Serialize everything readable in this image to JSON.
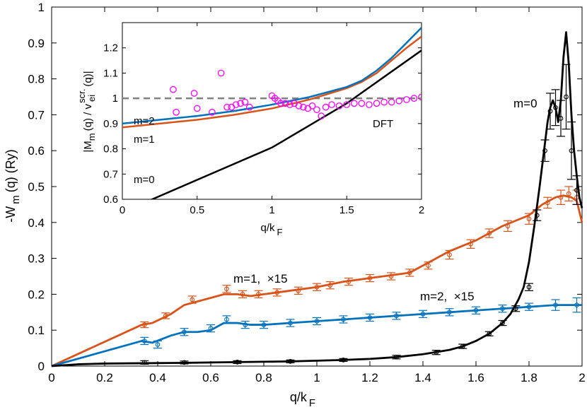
{
  "colors": {
    "m0": "#000000",
    "m1": "#d95319",
    "m2": "#0072bd",
    "dft": "#ff00ff",
    "ref": "#808080"
  },
  "chart_data": [
    {
      "type": "line",
      "title": "",
      "xlabel": {
        "main": "q/k",
        "sub": "F"
      },
      "ylabel": {
        "pre": "-W",
        "sub": "m",
        "post": "(q) (Ry)"
      },
      "xlim": [
        0,
        2
      ],
      "ylim": [
        0,
        1
      ],
      "xticks": [
        "0",
        "0.2",
        "0.4",
        "0.6",
        "0.8",
        "1",
        "1.2",
        "1.4",
        "1.6",
        "1.8",
        "2"
      ],
      "yticks": [
        "0",
        "0.1",
        "0.2",
        "0.3",
        "0.4",
        "0.5",
        "0.6",
        "0.7",
        "0.8",
        "0.9",
        "1"
      ],
      "annotations": {
        "m0": "m=0",
        "m1": "m=1,  ×15",
        "m2": "m=2,  ×15"
      },
      "series": [
        {
          "name": "m=0",
          "line": {
            "x": [
              0,
              0.1,
              0.2,
              0.35,
              0.5,
              0.7,
              0.9,
              1.0,
              1.1,
              1.2,
              1.3,
              1.4,
              1.5,
              1.55,
              1.6,
              1.65,
              1.7,
              1.73,
              1.76,
              1.78,
              1.8,
              1.82,
              1.84,
              1.85,
              1.86,
              1.87,
              1.88,
              1.89,
              1.9,
              1.91,
              1.92,
              1.93,
              1.94,
              1.95,
              1.96,
              1.97,
              1.98,
              1.99,
              2.0
            ],
            "y": [
              0,
              0.005,
              0.007,
              0.008,
              0.009,
              0.011,
              0.013,
              0.015,
              0.017,
              0.02,
              0.025,
              0.033,
              0.045,
              0.055,
              0.07,
              0.09,
              0.12,
              0.145,
              0.185,
              0.22,
              0.29,
              0.39,
              0.5,
              0.56,
              0.62,
              0.68,
              0.72,
              0.74,
              0.72,
              0.68,
              0.74,
              0.86,
              0.93,
              0.84,
              0.7,
              0.6,
              0.53,
              0.47,
              0.44
            ]
          },
          "points": {
            "x": [
              0.35,
              0.5,
              0.7,
              0.9,
              1.1,
              1.3,
              1.45,
              1.55,
              1.65,
              1.7,
              1.75,
              1.8,
              1.83,
              1.86,
              1.88,
              1.9,
              1.92,
              1.94,
              1.96,
              1.98
            ],
            "y": [
              0.01,
              0.01,
              0.011,
              0.013,
              0.017,
              0.025,
              0.038,
              0.055,
              0.09,
              0.12,
              0.16,
              0.22,
              0.42,
              0.6,
              0.71,
              0.72,
              0.69,
              0.75,
              0.6,
              0.49
            ],
            "err": [
              0.005,
              0.004,
              0.004,
              0.004,
              0.004,
              0.005,
              0.006,
              0.006,
              0.006,
              0.007,
              0.008,
              0.01,
              0.015,
              0.03,
              0.05,
              0.05,
              0.05,
              0.09,
              0.08,
              0.04
            ]
          }
        },
        {
          "name": "m=1, ×15",
          "line": {
            "x": [
              0,
              0.34,
              0.38,
              0.45,
              0.5,
              0.55,
              0.6,
              0.65,
              0.7,
              0.75,
              0.8,
              0.9,
              1.0,
              1.1,
              1.2,
              1.3,
              1.35,
              1.4,
              1.45,
              1.5,
              1.55,
              1.6,
              1.65,
              1.7,
              1.75,
              1.8,
              1.85,
              1.9,
              1.93,
              1.96,
              1.98,
              2.0
            ],
            "y": [
              0,
              0.115,
              0.12,
              0.145,
              0.17,
              0.18,
              0.19,
              0.2,
              0.2,
              0.195,
              0.2,
              0.21,
              0.22,
              0.235,
              0.245,
              0.255,
              0.26,
              0.28,
              0.3,
              0.32,
              0.335,
              0.35,
              0.37,
              0.39,
              0.405,
              0.42,
              0.45,
              0.47,
              0.475,
              0.47,
              0.46,
              0.4
            ]
          },
          "points": {
            "x": [
              0.35,
              0.43,
              0.53,
              0.66,
              0.72,
              0.78,
              0.85,
              0.93,
              1.0,
              1.05,
              1.12,
              1.2,
              1.28,
              1.35,
              1.42,
              1.5,
              1.58,
              1.65,
              1.72,
              1.8,
              1.87,
              1.92,
              1.95,
              1.98
            ],
            "y": [
              0.115,
              0.14,
              0.185,
              0.215,
              0.2,
              0.2,
              0.205,
              0.21,
              0.22,
              0.225,
              0.235,
              0.245,
              0.25,
              0.26,
              0.28,
              0.31,
              0.34,
              0.37,
              0.39,
              0.41,
              0.455,
              0.47,
              0.48,
              0.47
            ],
            "err": [
              0.008,
              0.008,
              0.01,
              0.01,
              0.01,
              0.01,
              0.01,
              0.01,
              0.01,
              0.01,
              0.01,
              0.01,
              0.01,
              0.01,
              0.01,
              0.012,
              0.012,
              0.012,
              0.015,
              0.015,
              0.015,
              0.02,
              0.02,
              0.02
            ]
          }
        },
        {
          "name": "m=2, ×15",
          "line": {
            "x": [
              0,
              0.34,
              0.38,
              0.45,
              0.5,
              0.55,
              0.6,
              0.65,
              0.7,
              0.75,
              0.8,
              0.9,
              1.0,
              1.1,
              1.2,
              1.3,
              1.4,
              1.5,
              1.6,
              1.7,
              1.8,
              1.9,
              2.0
            ],
            "y": [
              0,
              0.07,
              0.065,
              0.085,
              0.095,
              0.095,
              0.1,
              0.12,
              0.12,
              0.115,
              0.115,
              0.12,
              0.125,
              0.13,
              0.135,
              0.14,
              0.145,
              0.15,
              0.155,
              0.16,
              0.165,
              0.17,
              0.17
            ]
          },
          "points": {
            "x": [
              0.35,
              0.4,
              0.5,
              0.6,
              0.66,
              0.73,
              0.8,
              0.9,
              1.0,
              1.1,
              1.2,
              1.3,
              1.4,
              1.5,
              1.6,
              1.7,
              1.8,
              1.9,
              1.98
            ],
            "y": [
              0.07,
              0.06,
              0.095,
              0.105,
              0.13,
              0.115,
              0.115,
              0.12,
              0.125,
              0.13,
              0.135,
              0.14,
              0.145,
              0.15,
              0.155,
              0.16,
              0.165,
              0.17,
              0.17
            ],
            "err": [
              0.01,
              0.01,
              0.01,
              0.01,
              0.01,
              0.01,
              0.01,
              0.01,
              0.01,
              0.01,
              0.01,
              0.01,
              0.01,
              0.01,
              0.01,
              0.01,
              0.01,
              0.015,
              0.02
            ]
          }
        }
      ]
    },
    {
      "type": "line",
      "title": "",
      "position": "inset top-left",
      "xlabel": {
        "main": "q/k",
        "sub": "F"
      },
      "ylabel": {
        "a": "|M",
        "a_sub": "m",
        "b": "(q) / v",
        "b_sub": "ei",
        "b_sup": "scr.",
        "c": "(q)|"
      },
      "xlim": [
        0,
        2
      ],
      "ylim": [
        0.6,
        1.3
      ],
      "xticks": [
        "0",
        "0.5",
        "1",
        "1.5",
        "2"
      ],
      "yticks": [
        "0.6",
        "0.7",
        "0.8",
        "0.9",
        "1",
        "1.1",
        "1.2"
      ],
      "annotations": {
        "m0": "m=0",
        "m1": "m=1",
        "m2": "m=2",
        "dft": "DFT"
      },
      "reference": {
        "y": 1.0,
        "style": "dashed"
      },
      "series": [
        {
          "name": "m=0",
          "x": [
            0,
            0.2,
            0.5,
            1.0,
            1.5,
            2.0
          ],
          "y": [
            0.55,
            0.6,
            0.677,
            0.805,
            0.98,
            1.19
          ]
        },
        {
          "name": "m=1",
          "x": [
            0,
            0.25,
            0.5,
            0.75,
            1.0,
            1.25,
            1.5,
            1.6,
            1.7,
            1.8,
            1.9,
            2.0
          ],
          "y": [
            0.885,
            0.9,
            0.915,
            0.935,
            0.96,
            0.995,
            1.04,
            1.065,
            1.1,
            1.15,
            1.2,
            1.245
          ]
        },
        {
          "name": "m=2",
          "x": [
            0,
            0.25,
            0.5,
            0.75,
            1.0,
            1.25,
            1.5,
            1.6,
            1.7,
            1.8,
            1.9,
            2.0
          ],
          "y": [
            0.9,
            0.915,
            0.93,
            0.95,
            0.975,
            1.005,
            1.045,
            1.07,
            1.11,
            1.16,
            1.22,
            1.28
          ]
        },
        {
          "name": "DFT",
          "style": "circles",
          "x": [
            0.34,
            0.36,
            0.48,
            0.5,
            0.6,
            0.66,
            0.7,
            0.73,
            0.76,
            0.79,
            0.82,
            0.85,
            1.0,
            1.02,
            1.04,
            1.06,
            1.09,
            1.12,
            1.15,
            1.18,
            1.21,
            1.24,
            1.27,
            1.3,
            1.33,
            1.36,
            1.4,
            1.45,
            1.5,
            1.55,
            1.6,
            1.65,
            1.7,
            1.75,
            1.8,
            1.85,
            1.9,
            1.95,
            2.0
          ],
          "y": [
            1.035,
            0.945,
            1.02,
            0.96,
            0.945,
            1.1,
            0.965,
            0.965,
            0.975,
            0.98,
            0.985,
            0.965,
            1.01,
            1.0,
            0.99,
            0.98,
            0.98,
            0.975,
            0.98,
            0.97,
            0.965,
            0.96,
            0.97,
            0.955,
            0.93,
            0.965,
            0.975,
            0.97,
            0.975,
            0.98,
            0.98,
            0.975,
            0.98,
            0.985,
            0.985,
            0.99,
            0.995,
            1.0,
            1.005
          ]
        }
      ]
    }
  ]
}
